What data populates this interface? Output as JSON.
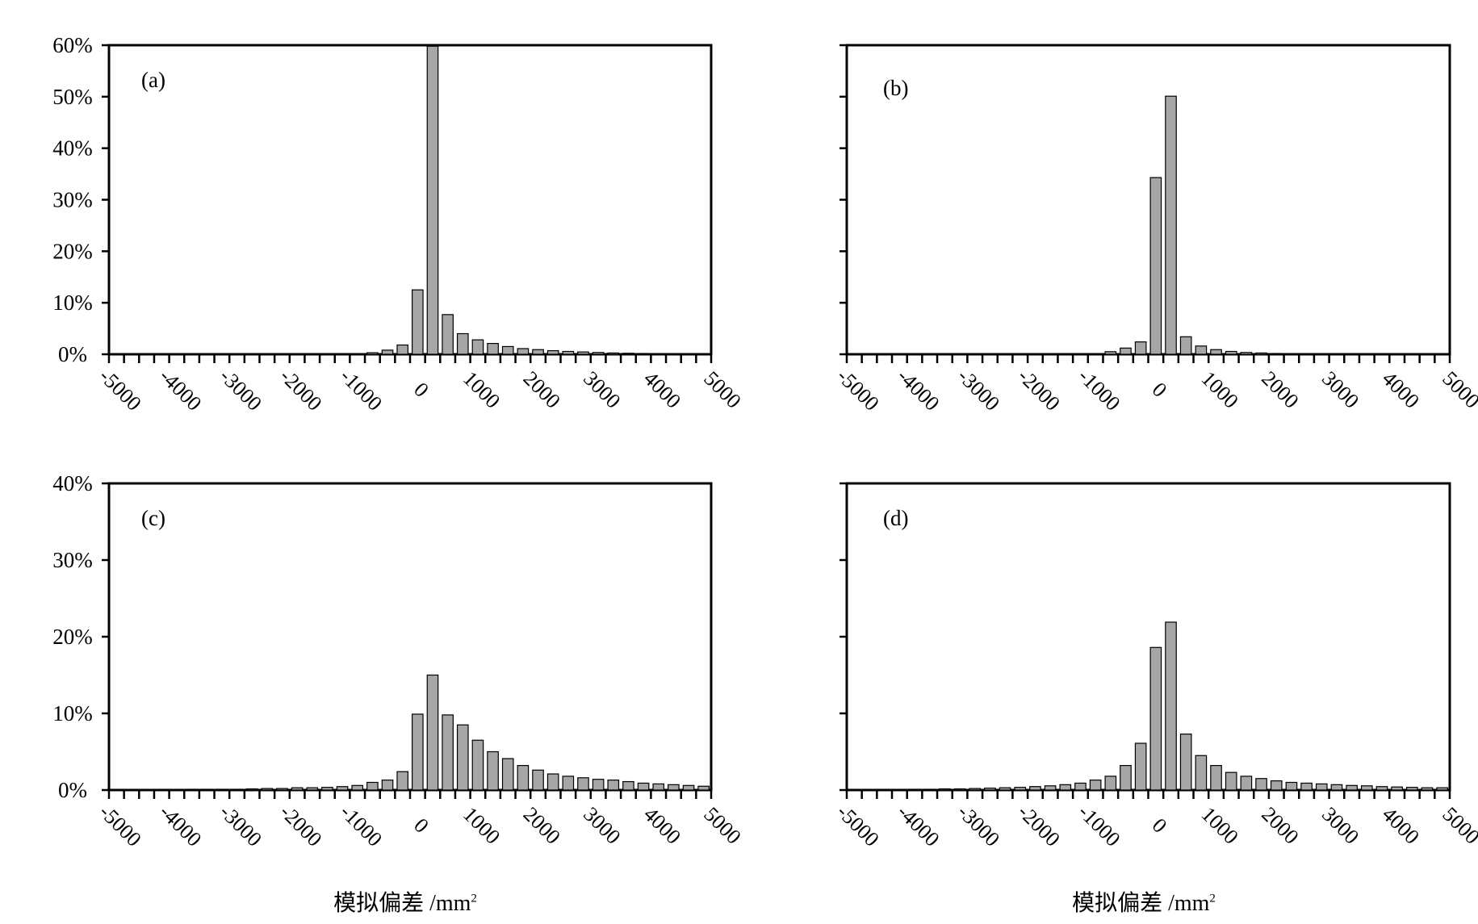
{
  "colors": {
    "bar_fill": "#a6a6a6",
    "bar_stroke": "#000000",
    "axis": "#000000"
  },
  "x_label": {
    "text": "模拟偏差 /mm",
    "superscript": "2"
  },
  "chart_data": [
    {
      "panel": "(a)",
      "type": "bar",
      "ylim": [
        0,
        60
      ],
      "yticks": [
        "0%",
        "10%",
        "20%",
        "30%",
        "40%",
        "50%",
        "60%"
      ],
      "xticks": [
        "-5000",
        "-4000",
        "-3000",
        "-2000",
        "-1000",
        "0",
        "1000",
        "2000",
        "3000",
        "4000",
        "5000"
      ],
      "x_range": [
        -5000,
        5000
      ],
      "bin_width": 250,
      "xlabel": "模拟偏差 /mm²",
      "bin_centers": [
        -4875,
        -4625,
        -4375,
        -4125,
        -3875,
        -3625,
        -3375,
        -3125,
        -2875,
        -2625,
        -2375,
        -2125,
        -1875,
        -1625,
        -1375,
        -1125,
        -875,
        -625,
        -375,
        -125,
        125,
        375,
        625,
        875,
        1125,
        1375,
        1625,
        1875,
        2125,
        2375,
        2625,
        2875,
        3125,
        3375,
        3625,
        3875,
        4125,
        4375,
        4625,
        4875
      ],
      "values": [
        0,
        0,
        0,
        0,
        0,
        0,
        0,
        0,
        0,
        0,
        0,
        0,
        0,
        0,
        0,
        0,
        0.1,
        0.3,
        0.8,
        1.8,
        12.5,
        59.8,
        7.7,
        4.0,
        2.8,
        2.1,
        1.5,
        1.1,
        0.9,
        0.7,
        0.55,
        0.45,
        0.35,
        0.25,
        0.2,
        0.15,
        0.1,
        0.05,
        0.05,
        0.05
      ],
      "grid": false
    },
    {
      "panel": "(b)",
      "type": "bar",
      "ylim": [
        0,
        60
      ],
      "yticks": [],
      "xticks": [
        "-5000",
        "-4000",
        "-3000",
        "-2000",
        "-1000",
        "0",
        "1000",
        "2000",
        "3000",
        "4000",
        "5000"
      ],
      "x_range": [
        -5000,
        5000
      ],
      "bin_width": 250,
      "xlabel": "模拟偏差 /mm²",
      "bin_centers": [
        -4875,
        -4625,
        -4375,
        -4125,
        -3875,
        -3625,
        -3375,
        -3125,
        -2875,
        -2625,
        -2375,
        -2125,
        -1875,
        -1625,
        -1375,
        -1125,
        -875,
        -625,
        -375,
        -125,
        125,
        375,
        625,
        875,
        1125,
        1375,
        1625,
        1875,
        2125,
        2375,
        2625,
        2875,
        3125,
        3375,
        3625,
        3875,
        4125,
        4375,
        4625,
        4875
      ],
      "values": [
        0,
        0,
        0,
        0,
        0,
        0,
        0,
        0,
        0,
        0,
        0,
        0,
        0,
        0,
        0,
        0,
        0.1,
        0.5,
        1.2,
        2.4,
        34.3,
        50.1,
        3.4,
        1.6,
        0.9,
        0.55,
        0.35,
        0.25,
        0.15,
        0.1,
        0.05,
        0.05,
        0,
        0,
        0,
        0,
        0,
        0,
        0,
        0
      ],
      "grid": false
    },
    {
      "panel": "(c)",
      "type": "bar",
      "ylim": [
        0,
        40
      ],
      "yticks": [
        "0%",
        "10%",
        "20%",
        "30%",
        "40%"
      ],
      "xticks": [
        "-5000",
        "-4000",
        "-3000",
        "-2000",
        "-1000",
        "0",
        "1000",
        "2000",
        "3000",
        "4000",
        "5000"
      ],
      "x_range": [
        -5000,
        5000
      ],
      "bin_width": 250,
      "xlabel": "模拟偏差 /mm²",
      "bin_centers": [
        -4875,
        -4625,
        -4375,
        -4125,
        -3875,
        -3625,
        -3375,
        -3125,
        -2875,
        -2625,
        -2375,
        -2125,
        -1875,
        -1625,
        -1375,
        -1125,
        -875,
        -625,
        -375,
        -125,
        125,
        375,
        625,
        875,
        1125,
        1375,
        1625,
        1875,
        2125,
        2375,
        2625,
        2875,
        3125,
        3375,
        3625,
        3875,
        4125,
        4375,
        4625,
        4875
      ],
      "values": [
        0.05,
        0.05,
        0.05,
        0.05,
        0.05,
        0.1,
        0.1,
        0.1,
        0.1,
        0.15,
        0.2,
        0.2,
        0.3,
        0.3,
        0.35,
        0.45,
        0.6,
        1.0,
        1.3,
        2.4,
        9.9,
        15.0,
        9.8,
        8.5,
        6.5,
        5.0,
        4.1,
        3.2,
        2.6,
        2.1,
        1.8,
        1.6,
        1.4,
        1.3,
        1.1,
        0.9,
        0.8,
        0.7,
        0.6,
        0.5
      ],
      "grid": false
    },
    {
      "panel": "(d)",
      "type": "bar",
      "ylim": [
        0,
        40
      ],
      "yticks": [],
      "xticks": [
        "-5000",
        "-4000",
        "-3000",
        "-2000",
        "-1000",
        "0",
        "1000",
        "2000",
        "3000",
        "4000",
        "5000"
      ],
      "x_range": [
        -5000,
        5000
      ],
      "bin_width": 250,
      "xlabel": "模拟偏差 /mm²",
      "bin_centers": [
        -4875,
        -4625,
        -4375,
        -4125,
        -3875,
        -3625,
        -3375,
        -3125,
        -2875,
        -2625,
        -2375,
        -2125,
        -1875,
        -1625,
        -1375,
        -1125,
        -875,
        -625,
        -375,
        -125,
        125,
        375,
        625,
        875,
        1125,
        1375,
        1625,
        1875,
        2125,
        2375,
        2625,
        2875,
        3125,
        3375,
        3625,
        3875,
        4125,
        4375,
        4625,
        4875
      ],
      "values": [
        0.05,
        0.05,
        0.05,
        0.05,
        0.1,
        0.1,
        0.15,
        0.15,
        0.2,
        0.25,
        0.3,
        0.35,
        0.45,
        0.55,
        0.7,
        0.9,
        1.3,
        1.8,
        3.2,
        6.1,
        18.6,
        21.9,
        7.3,
        4.5,
        3.2,
        2.3,
        1.8,
        1.5,
        1.2,
        1.0,
        0.9,
        0.8,
        0.7,
        0.6,
        0.55,
        0.45,
        0.4,
        0.35,
        0.3,
        0.3
      ],
      "grid": false
    }
  ]
}
